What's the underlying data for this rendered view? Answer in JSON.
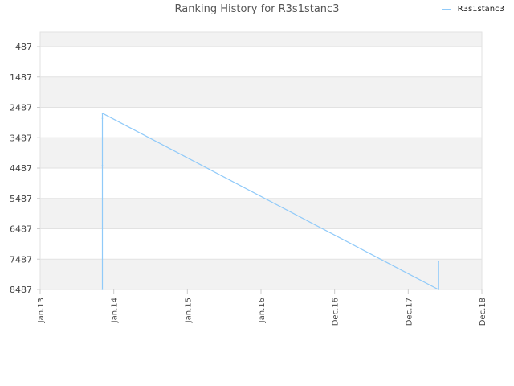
{
  "chart_data": {
    "type": "line",
    "title": "Ranking History for R3s1stanc3",
    "xlabel": "",
    "ylabel": "",
    "y_inverted": true,
    "ylim": [
      8487,
      0
    ],
    "y_ticks": [
      487,
      1487,
      2487,
      3487,
      4487,
      5487,
      6487,
      7487,
      8487
    ],
    "x_tick_labels": [
      "Jan.13",
      "Jan.14",
      "Jan.15",
      "Jan.16",
      "Dec.16",
      "Dec.17",
      "Dec.18"
    ],
    "grid": true,
    "legend_placement": "top-right",
    "series": [
      {
        "name": "R3s1stanc3",
        "color": "#90CAF9",
        "points": [
          {
            "x": "2013-11",
            "y": 8487
          },
          {
            "x": "2013-11",
            "y": 4400
          },
          {
            "x": "2013-11",
            "y": 2850
          },
          {
            "x": "2013-11",
            "y": 2680
          },
          {
            "x": "2018-05",
            "y": 8487
          },
          {
            "x": "2018-05",
            "y": 7560
          }
        ]
      }
    ]
  }
}
